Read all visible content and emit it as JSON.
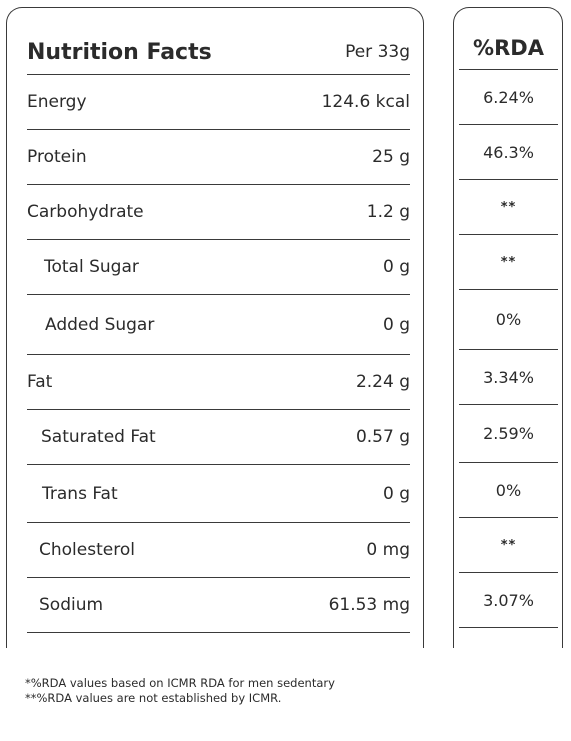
{
  "header": {
    "title": "Nutrition Facts",
    "serving": "Per 33g",
    "rda_title": "%RDA"
  },
  "rows": [
    {
      "name": "Energy",
      "value": "124.6 kcal",
      "rda": "6.24%"
    },
    {
      "name": "Protein",
      "value": "25 g",
      "rda": "46.3%"
    },
    {
      "name": "Carbohydrate",
      "value": "1.2 g",
      "rda": "**"
    },
    {
      "name": "Total Sugar",
      "value": "0 g",
      "rda": "**"
    },
    {
      "name": "Added Sugar",
      "value": "0 g",
      "rda": "0%"
    },
    {
      "name": "Fat",
      "value": "2.24 g",
      "rda": "3.34%"
    },
    {
      "name": "Saturated Fat",
      "value": "0.57 g",
      "rda": "2.59%"
    },
    {
      "name": "Trans Fat",
      "value": "0 g",
      "rda": "0%"
    },
    {
      "name": "Cholesterol",
      "value": "0 mg",
      "rda": "**"
    },
    {
      "name": "Sodium",
      "value": "61.53 mg",
      "rda": "3.07%"
    }
  ],
  "footnotes": [
    "*%RDA values based on ICMR RDA for men sedentary",
    "**%RDA values are not established by ICMR."
  ]
}
